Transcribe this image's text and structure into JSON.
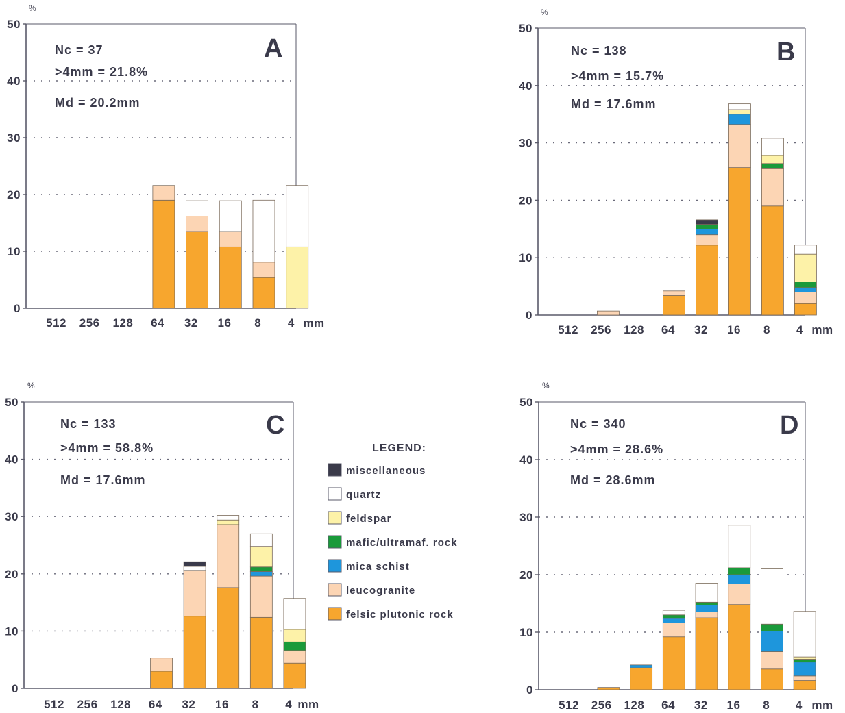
{
  "colors": {
    "miscellaneous": "#3a3a4a",
    "quartz": "#ffffff",
    "feldspar": "#fdf2a8",
    "mafic": "#1a9a3a",
    "mica": "#1e96dc",
    "leucogranite": "#fcd5b4",
    "felsic": "#f7a62e",
    "axis": "#5a5a6a",
    "grid": "#6a6a7a"
  },
  "legend": {
    "title": "LEGEND:",
    "items": [
      {
        "key": "miscellaneous",
        "label": "miscellaneous"
      },
      {
        "key": "quartz",
        "label": "quartz"
      },
      {
        "key": "feldspar",
        "label": "feldspar"
      },
      {
        "key": "mafic",
        "label": "mafic/ultramaf. rock"
      },
      {
        "key": "mica",
        "label": "mica schist"
      },
      {
        "key": "leucogranite",
        "label": "leucogranite"
      },
      {
        "key": "felsic",
        "label": "felsic plutonic rock"
      }
    ]
  },
  "chart_data": [
    {
      "type": "bar",
      "stacked": true,
      "panel": "A",
      "ylabel": "%",
      "xunit": "mm",
      "ylim": [
        0,
        50
      ],
      "yticks": [
        0,
        10,
        20,
        30,
        40,
        50
      ],
      "grid": "dotted horizontal",
      "categories": [
        "512",
        "256",
        "128",
        "64",
        "32",
        "16",
        "8",
        "4"
      ],
      "annotations": [
        "Nc = 37",
        ">4mm = 21.8%",
        "Md = 20.2mm"
      ],
      "series": [
        {
          "key": "felsic",
          "values": [
            0,
            0,
            0,
            19,
            13.5,
            10.8,
            5.4,
            0
          ]
        },
        {
          "key": "leucogranite",
          "values": [
            0,
            0,
            0,
            2.6,
            2.7,
            2.7,
            2.7,
            0
          ]
        },
        {
          "key": "mica",
          "values": [
            0,
            0,
            0,
            0,
            0,
            0,
            0,
            0
          ]
        },
        {
          "key": "mafic",
          "values": [
            0,
            0,
            0,
            0,
            0,
            0,
            0,
            0
          ]
        },
        {
          "key": "feldspar",
          "values": [
            0,
            0,
            0,
            0,
            0,
            0,
            0,
            10.8
          ]
        },
        {
          "key": "quartz",
          "values": [
            0,
            0,
            0,
            0,
            2.7,
            5.4,
            10.9,
            10.8
          ]
        },
        {
          "key": "miscellaneous",
          "values": [
            0,
            0,
            0,
            0,
            0,
            0,
            0,
            0
          ]
        }
      ]
    },
    {
      "type": "bar",
      "stacked": true,
      "panel": "B",
      "ylabel": "%",
      "xunit": "mm",
      "ylim": [
        0,
        50
      ],
      "yticks": [
        0,
        10,
        20,
        30,
        40,
        50
      ],
      "grid": "dotted horizontal",
      "categories": [
        "512",
        "256",
        "128",
        "64",
        "32",
        "16",
        "8",
        "4"
      ],
      "annotations": [
        "Nc = 138",
        ">4mm = 15.7%",
        "Md = 17.6mm"
      ],
      "series": [
        {
          "key": "felsic",
          "values": [
            0,
            0,
            0,
            3.4,
            12.2,
            25.7,
            19,
            2
          ]
        },
        {
          "key": "leucogranite",
          "values": [
            0,
            0.7,
            0,
            0.8,
            1.8,
            7.5,
            6.5,
            2
          ]
        },
        {
          "key": "mica",
          "values": [
            0,
            0,
            0,
            0,
            1,
            1.8,
            0,
            0.8
          ]
        },
        {
          "key": "mafic",
          "values": [
            0,
            0,
            0,
            0,
            0.8,
            0,
            0.9,
            1
          ]
        },
        {
          "key": "feldspar",
          "values": [
            0,
            0,
            0,
            0,
            0,
            0.8,
            1.4,
            4.8
          ]
        },
        {
          "key": "quartz",
          "values": [
            0,
            0,
            0,
            0,
            0,
            1,
            3,
            1.6
          ]
        },
        {
          "key": "miscellaneous",
          "values": [
            0,
            0,
            0,
            0,
            0.8,
            0,
            0,
            0
          ]
        }
      ]
    },
    {
      "type": "bar",
      "stacked": true,
      "panel": "C",
      "ylabel": "%",
      "xunit": "mm",
      "ylim": [
        0,
        50
      ],
      "yticks": [
        0,
        10,
        20,
        30,
        40,
        50
      ],
      "grid": "dotted horizontal",
      "categories": [
        "512",
        "256",
        "128",
        "64",
        "32",
        "16",
        "8",
        "4"
      ],
      "annotations": [
        "Nc = 133",
        ">4mm = 58.8%",
        "Md = 17.6mm"
      ],
      "series": [
        {
          "key": "felsic",
          "values": [
            0,
            0,
            0,
            3,
            12.6,
            17.6,
            12.4,
            4.4
          ]
        },
        {
          "key": "leucogranite",
          "values": [
            0,
            0,
            0,
            2.3,
            8,
            11,
            7.2,
            2.2
          ]
        },
        {
          "key": "mica",
          "values": [
            0,
            0,
            0,
            0,
            0,
            0,
            0.8,
            0
          ]
        },
        {
          "key": "mafic",
          "values": [
            0,
            0,
            0,
            0,
            0,
            0,
            0.8,
            1.5
          ]
        },
        {
          "key": "feldspar",
          "values": [
            0,
            0,
            0,
            0,
            0,
            0.8,
            3.6,
            2.2
          ]
        },
        {
          "key": "quartz",
          "values": [
            0,
            0,
            0,
            0,
            0.7,
            0.8,
            2.2,
            5.4
          ]
        },
        {
          "key": "miscellaneous",
          "values": [
            0,
            0,
            0,
            0,
            0.8,
            0,
            0,
            0
          ]
        }
      ]
    },
    {
      "type": "bar",
      "stacked": true,
      "panel": "D",
      "ylabel": "%",
      "xunit": "mm",
      "ylim": [
        0,
        50
      ],
      "yticks": [
        0,
        10,
        20,
        30,
        40,
        50
      ],
      "grid": "dotted horizontal",
      "categories": [
        "512",
        "256",
        "128",
        "64",
        "32",
        "16",
        "8",
        "4"
      ],
      "annotations": [
        "Nc = 340",
        ">4mm = 28.6%",
        "Md = 28.6mm"
      ],
      "series": [
        {
          "key": "felsic",
          "values": [
            0,
            0.4,
            3.8,
            9.2,
            12.5,
            14.8,
            3.6,
            1.6
          ]
        },
        {
          "key": "leucogranite",
          "values": [
            0,
            0,
            0,
            2.4,
            1,
            3.6,
            3,
            0.8
          ]
        },
        {
          "key": "mica",
          "values": [
            0,
            0,
            0.5,
            0.8,
            1.2,
            1.6,
            3.6,
            2.4
          ]
        },
        {
          "key": "mafic",
          "values": [
            0,
            0,
            0,
            0.6,
            0.5,
            1.2,
            1.2,
            0.5
          ]
        },
        {
          "key": "feldspar",
          "values": [
            0,
            0,
            0,
            0,
            0,
            0,
            0,
            0.4
          ]
        },
        {
          "key": "quartz",
          "values": [
            0,
            0,
            0,
            0.8,
            3.3,
            7.4,
            9.6,
            7.9
          ]
        },
        {
          "key": "miscellaneous",
          "values": [
            0,
            0,
            0,
            0,
            0,
            0,
            0,
            0
          ]
        }
      ]
    }
  ]
}
